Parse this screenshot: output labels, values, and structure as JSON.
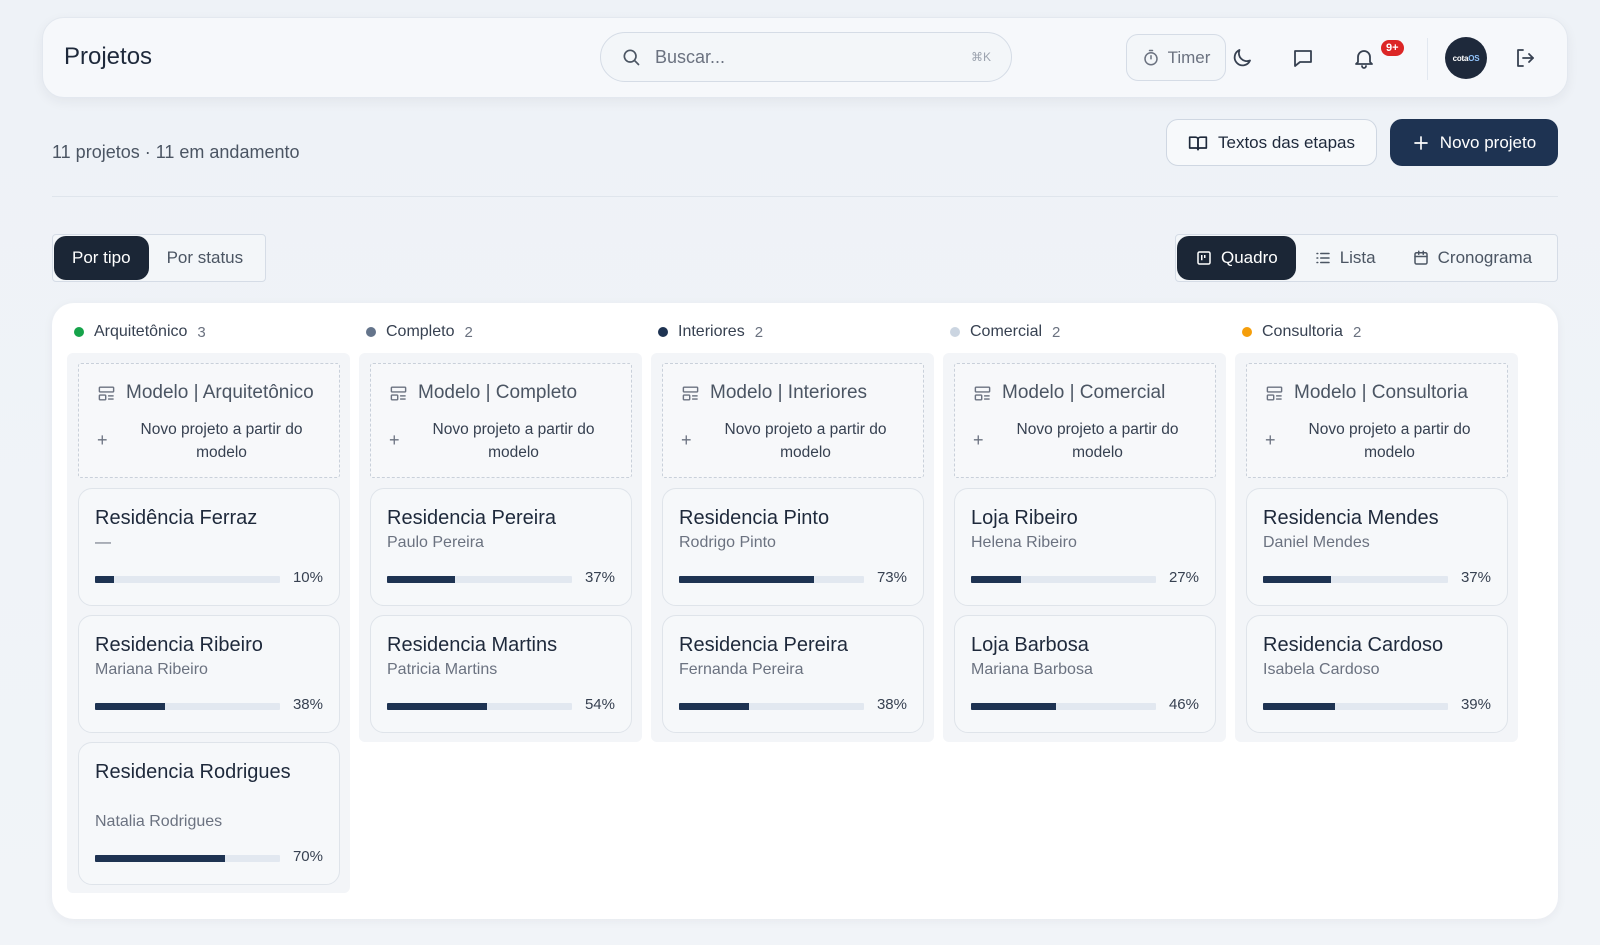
{
  "header": {
    "title": "Projetos",
    "search_placeholder": "Buscar...",
    "search_shortcut": "⌘K",
    "timer_label": "Timer",
    "notifications_badge": "9+",
    "avatar_text_a": "cota",
    "avatar_text_b": "OS"
  },
  "summary": {
    "text": "11 projetos · 11 em andamento",
    "stage_texts_label": "Textos das etapas",
    "new_project_label": "Novo projeto"
  },
  "grouping": {
    "by_type": "Por tipo",
    "by_status": "Por status",
    "active": "Por tipo"
  },
  "views": {
    "board": "Quadro",
    "list": "Lista",
    "schedule": "Cronograma",
    "active": "Quadro"
  },
  "colors": {
    "primary": "#1e3352",
    "active_toggle": "#1b2636"
  },
  "columns": [
    {
      "name": "Arquitetônico",
      "count": "3",
      "color": "#16a34a",
      "template_title": "Modelo | Arquitetônico",
      "template_sub": "Novo projeto a partir do modelo",
      "projects": [
        {
          "name": "Residência Ferraz",
          "client": "—",
          "progress": 10,
          "pct": "10%"
        },
        {
          "name": "Residencia Ribeiro",
          "client": "Mariana Ribeiro",
          "progress": 38,
          "pct": "38%"
        },
        {
          "name": "Residencia Rodrigues",
          "client": "Natalia Rodrigues",
          "progress": 70,
          "pct": "70%"
        }
      ]
    },
    {
      "name": "Completo",
      "count": "2",
      "color": "#64748b",
      "template_title": "Modelo | Completo",
      "template_sub": "Novo projeto a partir do modelo",
      "projects": [
        {
          "name": "Residencia Pereira",
          "client": "Paulo Pereira",
          "progress": 37,
          "pct": "37%"
        },
        {
          "name": "Residencia Martins",
          "client": "Patricia Martins",
          "progress": 54,
          "pct": "54%"
        }
      ]
    },
    {
      "name": "Interiores",
      "count": "2",
      "color": "#1e3352",
      "template_title": "Modelo | Interiores",
      "template_sub": "Novo projeto a partir do modelo",
      "projects": [
        {
          "name": "Residencia Pinto",
          "client": "Rodrigo Pinto",
          "progress": 73,
          "pct": "73%"
        },
        {
          "name": "Residencia Pereira",
          "client": "Fernanda Pereira",
          "progress": 38,
          "pct": "38%"
        }
      ]
    },
    {
      "name": "Comercial",
      "count": "2",
      "color": "#cbd5e1",
      "template_title": "Modelo | Comercial",
      "template_sub": "Novo projeto a partir do modelo",
      "projects": [
        {
          "name": "Loja Ribeiro",
          "client": "Helena Ribeiro",
          "progress": 27,
          "pct": "27%"
        },
        {
          "name": "Loja Barbosa",
          "client": "Mariana Barbosa",
          "progress": 46,
          "pct": "46%"
        }
      ]
    },
    {
      "name": "Consultoria",
      "count": "2",
      "color": "#f59e0b",
      "template_title": "Modelo | Consultoria",
      "template_sub": "Novo projeto a partir do modelo",
      "projects": [
        {
          "name": "Residencia Mendes",
          "client": "Daniel Mendes",
          "progress": 37,
          "pct": "37%"
        },
        {
          "name": "Residencia Cardoso",
          "client": "Isabela Cardoso",
          "progress": 39,
          "pct": "39%"
        }
      ]
    }
  ]
}
